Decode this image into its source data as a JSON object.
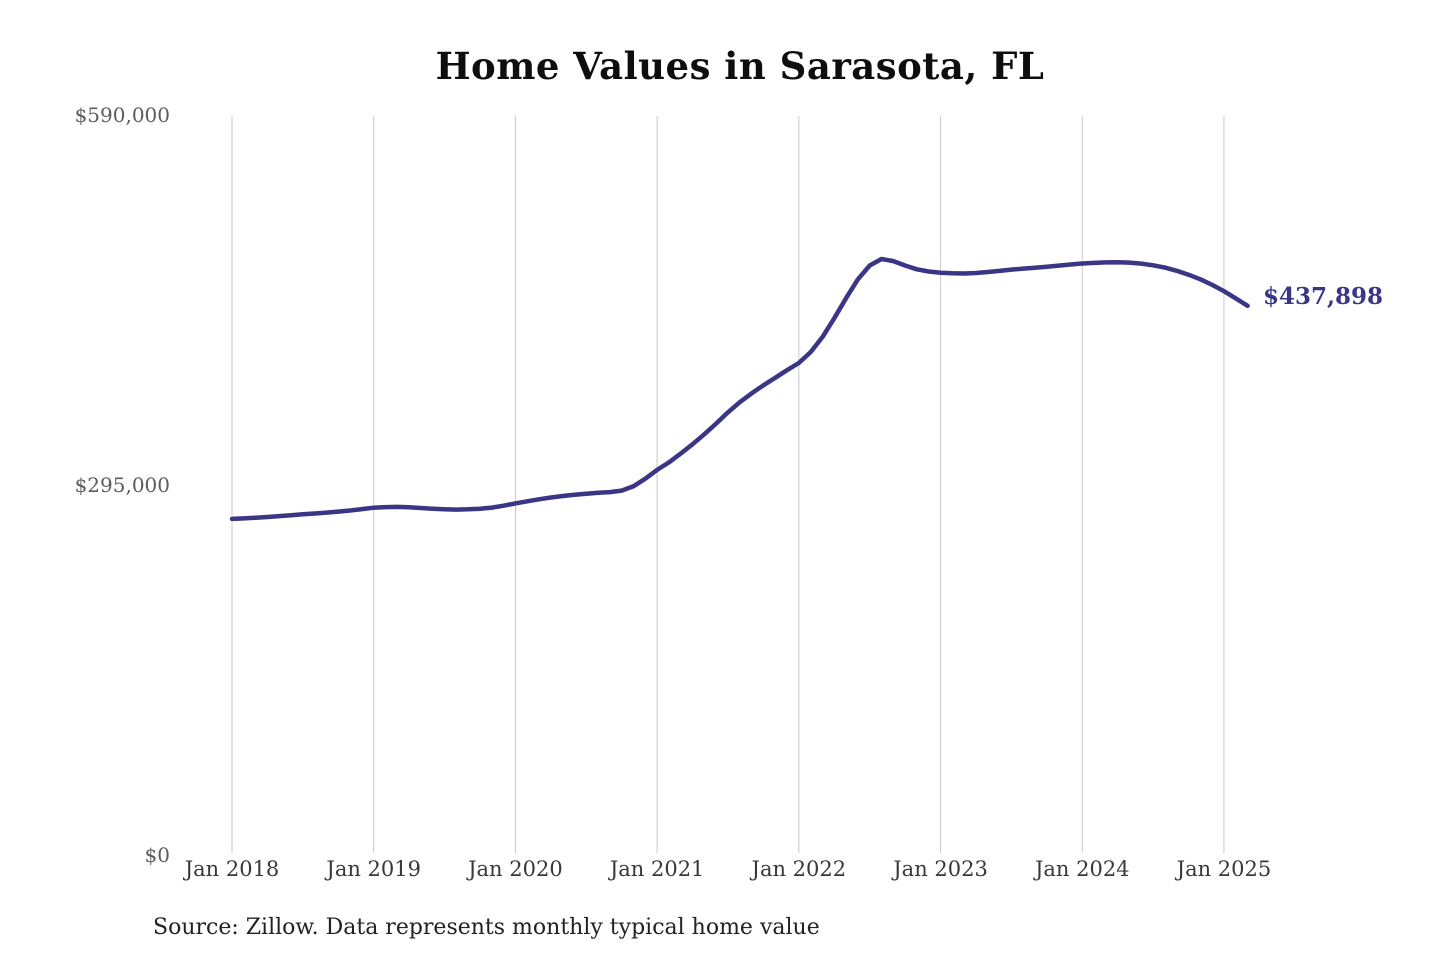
{
  "header": {
    "title": "Home Values in Sarasota, FL"
  },
  "footer": {
    "source_note": "Source: Zillow. Data represents monthly typical home value"
  },
  "chart_data": {
    "type": "line",
    "title": "Home Values in Sarasota, FL",
    "xlabel": "",
    "ylabel": "",
    "ylim": [
      0,
      590000
    ],
    "grid": "vertical-only",
    "legend": "none",
    "end_label": "$437,898",
    "end_value": 437898,
    "colors": {
      "line": "#3b3586",
      "grid": "#c9c9c9",
      "title_text": "#0e0e0e",
      "x_tick_text": "#383838",
      "y_tick_text": "#5c5c5c",
      "source_text": "#222222",
      "background": "#ffffff"
    },
    "y_axis": [
      {
        "value": 0,
        "label": "$0"
      },
      {
        "value": 295000,
        "label": "$295,000"
      },
      {
        "value": 590000,
        "label": "$590,000"
      }
    ],
    "x_tick_labels": [
      "Jan 2018",
      "Jan 2019",
      "Jan 2020",
      "Jan 2021",
      "Jan 2022",
      "Jan 2023",
      "Jan 2024",
      "Jan 2025"
    ],
    "series": [
      {
        "name": "Monthly typical home value",
        "color": "#3b3586",
        "x": [
          "2018-01",
          "2018-02",
          "2018-03",
          "2018-04",
          "2018-05",
          "2018-06",
          "2018-07",
          "2018-08",
          "2018-09",
          "2018-10",
          "2018-11",
          "2018-12",
          "2019-01",
          "2019-02",
          "2019-03",
          "2019-04",
          "2019-05",
          "2019-06",
          "2019-07",
          "2019-08",
          "2019-09",
          "2019-10",
          "2019-11",
          "2019-12",
          "2020-01",
          "2020-02",
          "2020-03",
          "2020-04",
          "2020-05",
          "2020-06",
          "2020-07",
          "2020-08",
          "2020-09",
          "2020-10",
          "2020-11",
          "2020-12",
          "2021-01",
          "2021-02",
          "2021-03",
          "2021-04",
          "2021-05",
          "2021-06",
          "2021-07",
          "2021-08",
          "2021-09",
          "2021-10",
          "2021-11",
          "2021-12",
          "2022-01",
          "2022-02",
          "2022-03",
          "2022-04",
          "2022-05",
          "2022-06",
          "2022-07",
          "2022-08",
          "2022-09",
          "2022-10",
          "2022-11",
          "2022-12",
          "2023-01",
          "2023-02",
          "2023-03",
          "2023-04",
          "2023-05",
          "2023-06",
          "2023-07",
          "2023-08",
          "2023-09",
          "2023-10",
          "2023-11",
          "2023-12",
          "2024-01",
          "2024-02",
          "2024-03",
          "2024-04",
          "2024-05",
          "2024-06",
          "2024-07",
          "2024-08",
          "2024-09",
          "2024-10",
          "2024-11",
          "2024-12",
          "2025-01",
          "2025-02",
          "2025-03"
        ],
        "values": [
          268000,
          268400,
          268900,
          269500,
          270200,
          270900,
          271600,
          272300,
          273000,
          273800,
          274700,
          275800,
          276900,
          277400,
          277500,
          277200,
          276700,
          276100,
          275600,
          275400,
          275600,
          276100,
          277000,
          278500,
          280300,
          282000,
          283600,
          285000,
          286200,
          287200,
          288100,
          288900,
          289300,
          290500,
          294000,
          300000,
          307000,
          313000,
          320000,
          327500,
          335500,
          344000,
          353000,
          361000,
          368000,
          374500,
          380500,
          386500,
          392300,
          401000,
          413000,
          428000,
          444000,
          459000,
          470000,
          475200,
          473500,
          470000,
          467000,
          465200,
          464300,
          463800,
          463600,
          464000,
          464800,
          465700,
          466700,
          467500,
          468200,
          469000,
          469900,
          470800,
          471600,
          472100,
          472500,
          472600,
          472300,
          471500,
          470200,
          468300,
          465800,
          462700,
          459000,
          454500,
          449500,
          443800,
          437898
        ]
      }
    ]
  }
}
